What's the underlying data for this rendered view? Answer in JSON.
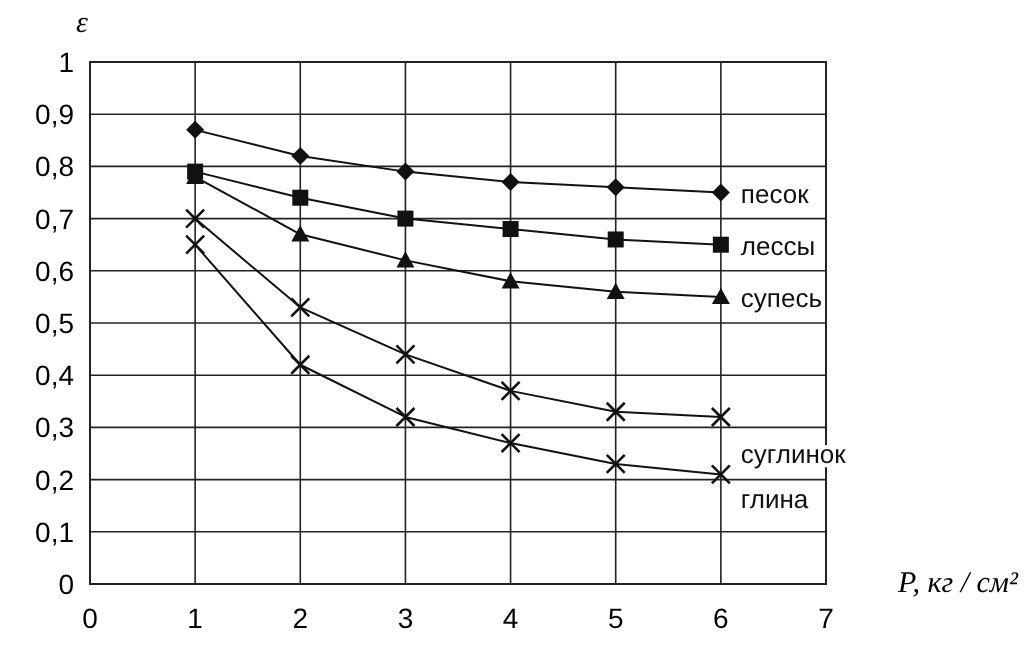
{
  "chart_data": {
    "type": "line",
    "xlabel": "P, кг / см²",
    "ylabel": "ε",
    "x": [
      1,
      2,
      3,
      4,
      5,
      6
    ],
    "xlim": [
      0,
      7
    ],
    "xticks": [
      0,
      1,
      2,
      3,
      4,
      5,
      6,
      7
    ],
    "ylim": [
      0,
      1
    ],
    "yticks": [
      0,
      {
        "value": 0.1,
        "label": "0,1"
      },
      {
        "value": 0.2,
        "label": "0,2"
      },
      {
        "value": 0.3,
        "label": "0,3"
      },
      {
        "value": 0.4,
        "label": "0,4"
      },
      {
        "value": 0.5,
        "label": "0,5"
      },
      {
        "value": 0.6,
        "label": "0,6"
      },
      {
        "value": 0.7,
        "label": "0,7"
      },
      {
        "value": 0.8,
        "label": "0,8"
      },
      {
        "value": 0.9,
        "label": "0,9"
      },
      1
    ],
    "grid": true,
    "line_style": "solid",
    "series": [
      {
        "name": "песок",
        "color": "#111111",
        "marker": "diamond",
        "values": [
          0.87,
          0.82,
          0.79,
          0.77,
          0.76,
          0.75
        ]
      },
      {
        "name": "лессы",
        "color": "#111111",
        "marker": "square",
        "values": [
          0.79,
          0.74,
          0.7,
          0.68,
          0.66,
          0.65
        ]
      },
      {
        "name": "супесь",
        "color": "#111111",
        "marker": "triangle",
        "values": [
          0.78,
          0.67,
          0.62,
          0.58,
          0.56,
          0.55
        ]
      },
      {
        "name": "суглинок",
        "color": "#111111",
        "marker": "cross",
        "values": [
          0.7,
          0.53,
          0.44,
          0.37,
          0.33,
          0.32
        ]
      },
      {
        "name": "глина",
        "color": "#111111",
        "marker": "cross",
        "values": [
          0.65,
          0.42,
          0.32,
          0.27,
          0.23,
          0.21
        ]
      }
    ]
  }
}
